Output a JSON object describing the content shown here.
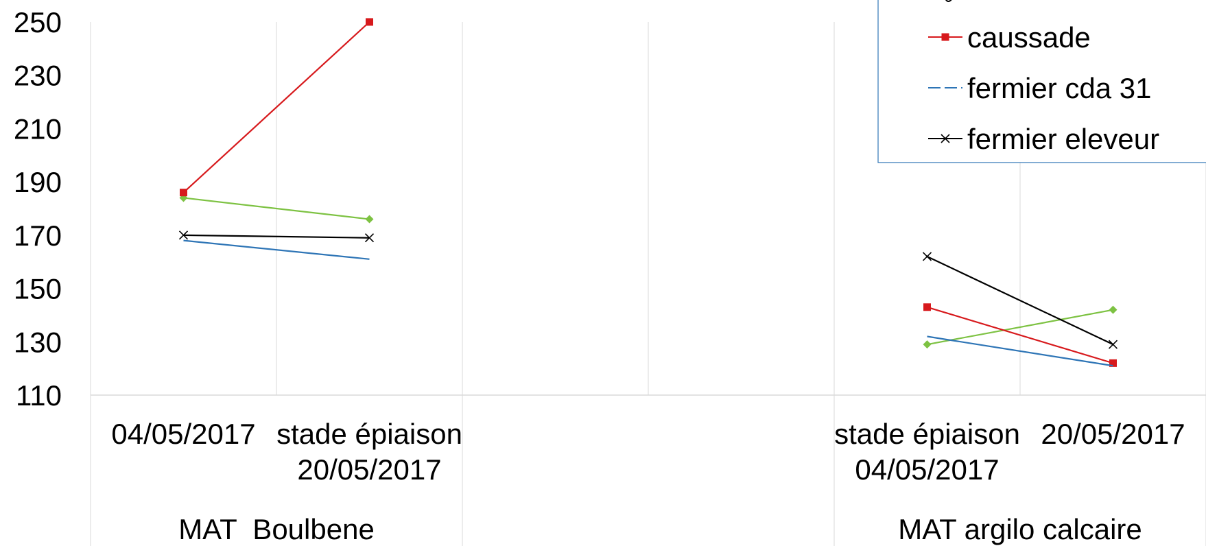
{
  "chart_data": {
    "type": "line",
    "ylim": [
      110,
      250
    ],
    "yticks": [
      250,
      230,
      210,
      190,
      170,
      150,
      130,
      110
    ],
    "grid": true,
    "legend_position": "top-right",
    "groups": [
      {
        "label": "MAT  Boulbene",
        "categories": [
          [
            "04/05/2017"
          ],
          [
            "stade épiaison",
            "20/05/2017"
          ]
        ]
      },
      {
        "label": "",
        "categories": [
          [],
          []
        ]
      },
      {
        "label": "MAT argilo calcaire",
        "categories": [
          [
            "stade épiaison",
            "04/05/2017"
          ],
          [
            "20/05/2017"
          ]
        ]
      }
    ],
    "series": [
      {
        "name": "",
        "color": "#7dc242",
        "marker": "diamond",
        "dash": "solid",
        "segments": [
          [
            184,
            176
          ],
          null,
          [
            129,
            142
          ]
        ]
      },
      {
        "name": "caussade",
        "color": "#d7191c",
        "marker": "square",
        "dash": "solid",
        "segments": [
          [
            186,
            250
          ],
          null,
          [
            143,
            122
          ]
        ]
      },
      {
        "name": "fermier cda 31",
        "color": "#2e75b6",
        "marker": "none",
        "dash": "dashed",
        "segments": [
          [
            168,
            161
          ],
          null,
          [
            132,
            121
          ]
        ]
      },
      {
        "name": "fermier eleveur",
        "color": "#000000",
        "marker": "x",
        "dash": "solid",
        "segments": [
          [
            170,
            169
          ],
          null,
          [
            162,
            129
          ]
        ]
      }
    ]
  }
}
